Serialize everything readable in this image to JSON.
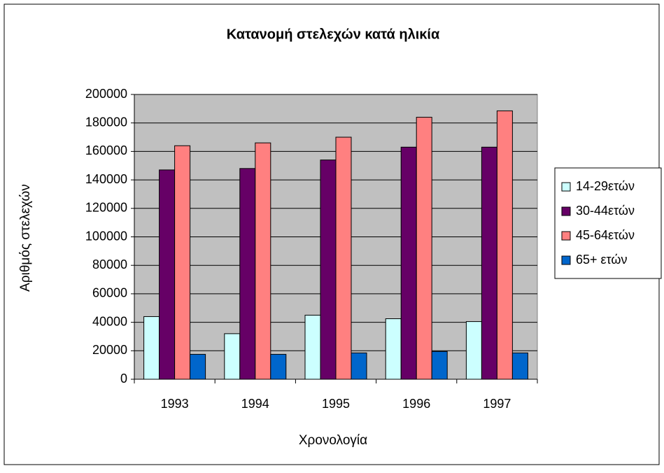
{
  "chart_data": {
    "type": "bar",
    "title": "Κατανομή στελεχών κατά ηλικία",
    "x_label": "Χρονολογία",
    "y_label": "Αριθμός στελεχών",
    "categories": [
      "1993",
      "1994",
      "1995",
      "1996",
      "1997"
    ],
    "series": [
      {
        "name": "14-29ετών",
        "color": "#ccffff",
        "values": [
          44000,
          32000,
          45000,
          42500,
          40500
        ]
      },
      {
        "name": "30-44ετών",
        "color": "#660066",
        "values": [
          147000,
          148000,
          154000,
          163000,
          163000
        ]
      },
      {
        "name": "45-64ετών",
        "color": "#ff8080",
        "values": [
          164000,
          166000,
          170000,
          184000,
          188500
        ]
      },
      {
        "name": "65+ ετών",
        "color": "#0066cc",
        "values": [
          17500,
          17500,
          18500,
          19500,
          18500
        ]
      }
    ],
    "ylim": [
      0,
      200000
    ],
    "yticks": [
      0,
      20000,
      40000,
      60000,
      80000,
      100000,
      120000,
      140000,
      160000,
      180000,
      200000
    ],
    "grid": true,
    "plot_background": "#c0c0c0",
    "legend": "right"
  }
}
